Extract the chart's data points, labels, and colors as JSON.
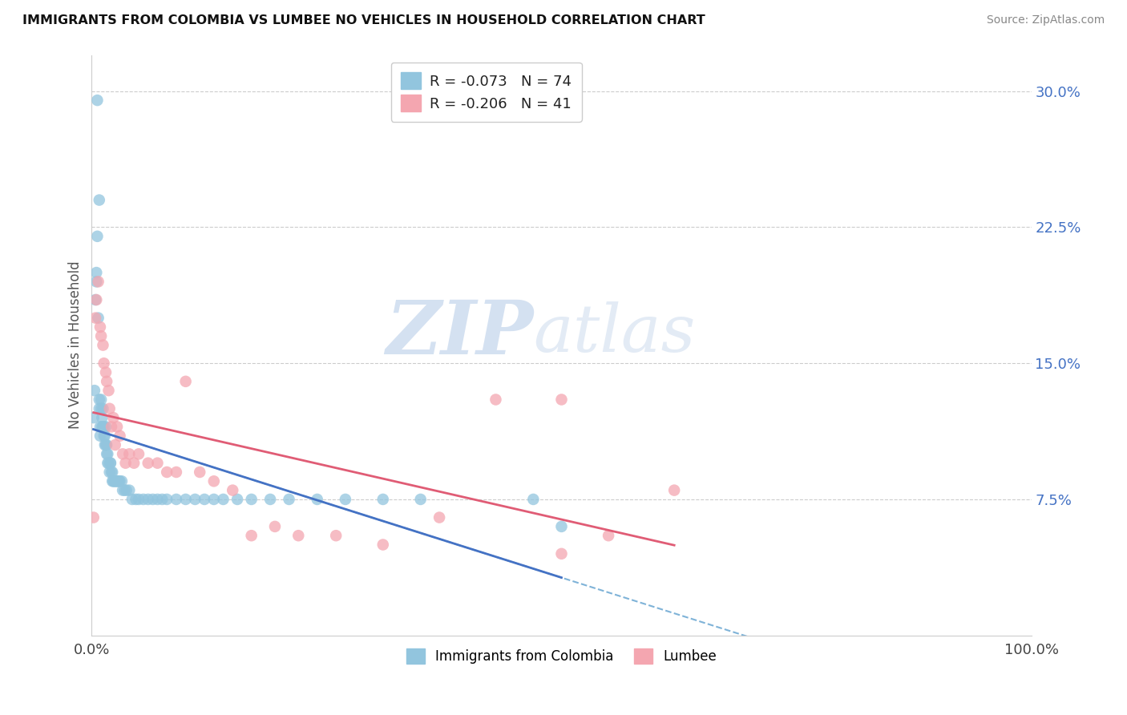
{
  "title": "IMMIGRANTS FROM COLOMBIA VS LUMBEE NO VEHICLES IN HOUSEHOLD CORRELATION CHART",
  "source": "Source: ZipAtlas.com",
  "ylabel": "No Vehicles in Household",
  "xlim": [
    0.0,
    1.0
  ],
  "ylim": [
    0.0,
    0.32
  ],
  "yticks": [
    0.075,
    0.15,
    0.225,
    0.3
  ],
  "ytick_labels": [
    "7.5%",
    "15.0%",
    "22.5%",
    "30.0%"
  ],
  "xtick_labels": [
    "0.0%",
    "100.0%"
  ],
  "legend_labels": [
    "Immigrants from Colombia",
    "Lumbee"
  ],
  "R_colombia": -0.073,
  "N_colombia": 74,
  "R_lumbee": -0.206,
  "N_lumbee": 41,
  "color_colombia": "#92C5DE",
  "color_lumbee": "#F4A6B0",
  "color_line_colombia": "#4472C4",
  "color_line_lumbee": "#E05C75",
  "color_trend_dashed": "#7FB3D8",
  "watermark_zip": "ZIP",
  "watermark_atlas": "atlas",
  "colombia_x": [
    0.002,
    0.003,
    0.004,
    0.005,
    0.005,
    0.006,
    0.007,
    0.008,
    0.008,
    0.009,
    0.009,
    0.01,
    0.01,
    0.011,
    0.011,
    0.012,
    0.012,
    0.013,
    0.013,
    0.014,
    0.014,
    0.015,
    0.015,
    0.016,
    0.016,
    0.017,
    0.017,
    0.018,
    0.019,
    0.02,
    0.02,
    0.021,
    0.022,
    0.022,
    0.023,
    0.024,
    0.025,
    0.026,
    0.027,
    0.028,
    0.029,
    0.03,
    0.032,
    0.033,
    0.035,
    0.037,
    0.04,
    0.043,
    0.047,
    0.05,
    0.055,
    0.06,
    0.065,
    0.07,
    0.075,
    0.08,
    0.09,
    0.1,
    0.11,
    0.12,
    0.13,
    0.14,
    0.155,
    0.17,
    0.19,
    0.21,
    0.24,
    0.27,
    0.31,
    0.35,
    0.006,
    0.008,
    0.47,
    0.5
  ],
  "colombia_y": [
    0.12,
    0.135,
    0.185,
    0.2,
    0.195,
    0.22,
    0.175,
    0.13,
    0.125,
    0.115,
    0.11,
    0.13,
    0.125,
    0.12,
    0.115,
    0.125,
    0.115,
    0.115,
    0.11,
    0.11,
    0.105,
    0.115,
    0.105,
    0.105,
    0.1,
    0.1,
    0.095,
    0.095,
    0.09,
    0.095,
    0.095,
    0.09,
    0.09,
    0.085,
    0.085,
    0.085,
    0.085,
    0.085,
    0.085,
    0.085,
    0.085,
    0.085,
    0.085,
    0.08,
    0.08,
    0.08,
    0.08,
    0.075,
    0.075,
    0.075,
    0.075,
    0.075,
    0.075,
    0.075,
    0.075,
    0.075,
    0.075,
    0.075,
    0.075,
    0.075,
    0.075,
    0.075,
    0.075,
    0.075,
    0.075,
    0.075,
    0.075,
    0.075,
    0.075,
    0.075,
    0.295,
    0.24,
    0.075,
    0.06
  ],
  "lumbee_x": [
    0.002,
    0.004,
    0.005,
    0.007,
    0.009,
    0.01,
    0.012,
    0.013,
    0.015,
    0.016,
    0.018,
    0.019,
    0.021,
    0.023,
    0.025,
    0.027,
    0.03,
    0.033,
    0.036,
    0.04,
    0.045,
    0.05,
    0.06,
    0.07,
    0.08,
    0.09,
    0.1,
    0.115,
    0.13,
    0.15,
    0.17,
    0.195,
    0.22,
    0.26,
    0.31,
    0.37,
    0.43,
    0.5,
    0.55,
    0.62,
    0.5
  ],
  "lumbee_y": [
    0.065,
    0.175,
    0.185,
    0.195,
    0.17,
    0.165,
    0.16,
    0.15,
    0.145,
    0.14,
    0.135,
    0.125,
    0.115,
    0.12,
    0.105,
    0.115,
    0.11,
    0.1,
    0.095,
    0.1,
    0.095,
    0.1,
    0.095,
    0.095,
    0.09,
    0.09,
    0.14,
    0.09,
    0.085,
    0.08,
    0.055,
    0.06,
    0.055,
    0.055,
    0.05,
    0.065,
    0.13,
    0.13,
    0.055,
    0.08,
    0.045
  ]
}
